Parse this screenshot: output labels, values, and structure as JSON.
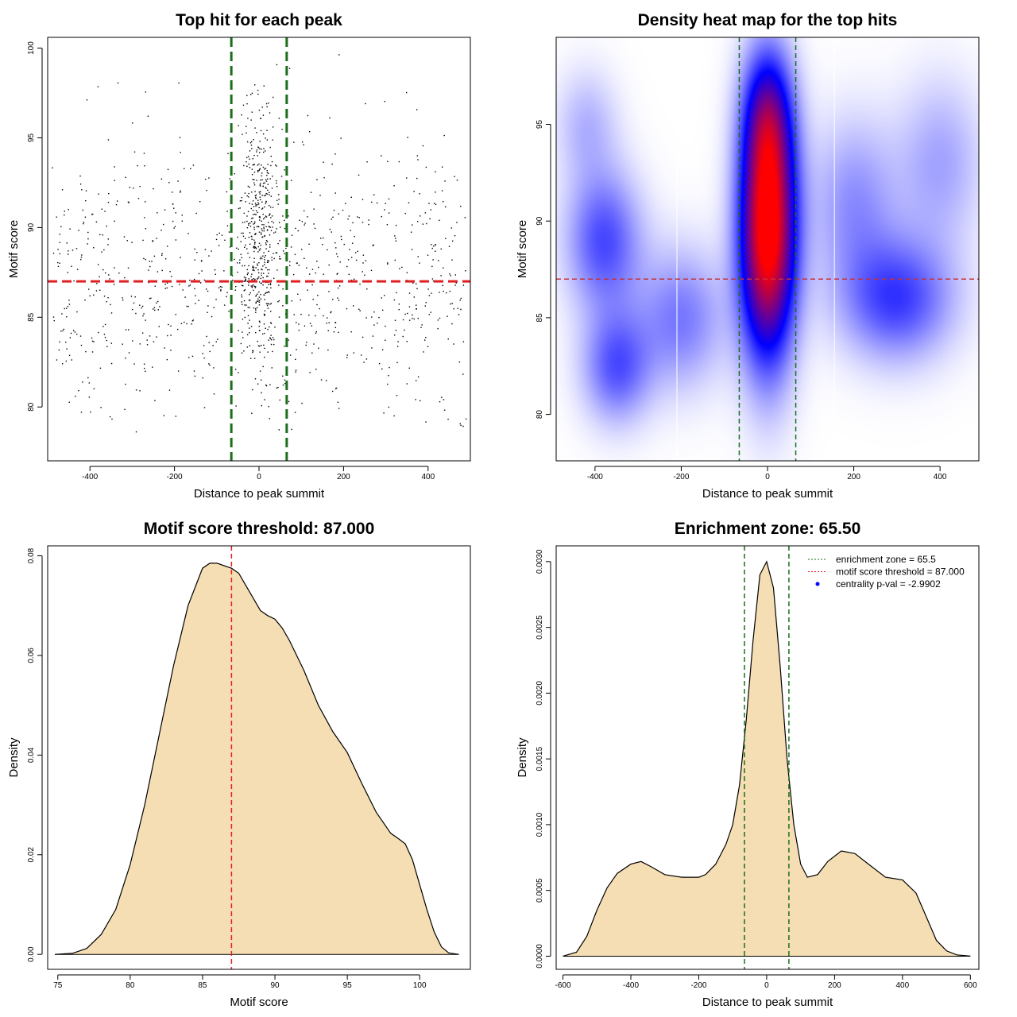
{
  "colors": {
    "points": "#000000",
    "threshold_line": "#e02020",
    "zone_line": "#1b6e1b",
    "density_fill": "#f5deb3",
    "heat_low": "#ffffff",
    "heat_mid": "#0000ff",
    "heat_high": "#ff0000"
  },
  "chart_data": [
    {
      "id": "scatter",
      "type": "scatter",
      "title": "Top hit for each peak",
      "xlabel": "Distance to peak summit",
      "ylabel": "Motif score",
      "xlim": [
        -500,
        500
      ],
      "ylim": [
        77,
        100.6
      ],
      "xticks": [
        -400,
        -200,
        0,
        200,
        400
      ],
      "yticks": [
        80,
        85,
        90,
        95,
        100
      ],
      "xtick_labels": [
        "-400",
        "-200",
        "0",
        "200",
        "400"
      ],
      "ytick_labels": [
        "80",
        "85",
        "90",
        "95",
        "100"
      ],
      "hline": 87,
      "vlines": [
        -65.5,
        65.5
      ],
      "point_count": 1350,
      "point_distribution": {
        "central_fraction": 0.35,
        "central_center": 0,
        "central_sd": 25,
        "central_score_mean": 89.5,
        "central_score_sd": 4,
        "background_score_mean": 87,
        "background_score_sd": 4.2
      }
    },
    {
      "id": "heatmap",
      "type": "heatmap",
      "title": "Density heat map for the top hits",
      "xlabel": "Distance to peak summit",
      "ylabel": "Motif score",
      "xlim": [
        -490,
        490
      ],
      "ylim": [
        77.6,
        99.5
      ],
      "xticks": [
        -400,
        -200,
        0,
        200,
        400
      ],
      "yticks": [
        80,
        85,
        90,
        95
      ],
      "xtick_labels": [
        "-400",
        "-200",
        "0",
        "200",
        "400"
      ],
      "ytick_labels": [
        "80",
        "85",
        "90",
        "95"
      ],
      "hline": 87,
      "vlines": [
        -65.5,
        65.5
      ],
      "white_vlines": [
        -210,
        155
      ],
      "colorscale": [
        "white",
        "blue",
        "red"
      ],
      "density_components": [
        {
          "x": 0,
          "y": 89.5,
          "sx": 45,
          "sy": 4.5,
          "w": 1.0
        },
        {
          "x": 0,
          "y": 95.5,
          "sx": 40,
          "sy": 2.5,
          "w": 0.35
        },
        {
          "x": -380,
          "y": 89,
          "sx": 60,
          "sy": 2.5,
          "w": 0.3
        },
        {
          "x": -350,
          "y": 82.5,
          "sx": 55,
          "sy": 2.0,
          "w": 0.28
        },
        {
          "x": -200,
          "y": 85,
          "sx": 70,
          "sy": 2.5,
          "w": 0.22
        },
        {
          "x": 300,
          "y": 86,
          "sx": 90,
          "sy": 2.2,
          "w": 0.32
        },
        {
          "x": 200,
          "y": 91,
          "sx": 70,
          "sy": 3.0,
          "w": 0.18
        },
        {
          "x": 400,
          "y": 93,
          "sx": 70,
          "sy": 3.0,
          "w": 0.15
        },
        {
          "x": -420,
          "y": 95,
          "sx": 50,
          "sy": 2.0,
          "w": 0.12
        }
      ]
    },
    {
      "id": "score_density",
      "type": "area",
      "title": "Motif score threshold: 87.000",
      "xlabel": "Motif score",
      "ylabel": "Density",
      "xlim": [
        74.3,
        103.5
      ],
      "ylim": [
        -0.003,
        0.082
      ],
      "xticks": [
        75,
        80,
        85,
        90,
        95,
        100
      ],
      "yticks": [
        0.0,
        0.02,
        0.04,
        0.06,
        0.08
      ],
      "xtick_labels": [
        "75",
        "80",
        "85",
        "90",
        "95",
        "100"
      ],
      "ytick_labels": [
        "0.00",
        "0.02",
        "0.04",
        "0.06",
        "0.08"
      ],
      "vline": 87,
      "x": [
        74.8,
        76,
        77,
        78,
        79,
        80,
        81,
        82,
        83,
        84,
        85,
        85.5,
        86,
        86.5,
        87,
        87.5,
        88,
        88.5,
        89,
        89.5,
        90,
        90.5,
        91,
        91.5,
        92,
        93,
        94,
        95,
        96,
        97,
        98,
        98.5,
        99,
        99.5,
        100,
        100.5,
        101,
        101.5,
        102,
        102.7
      ],
      "y": [
        0.0,
        0.0002,
        0.0012,
        0.004,
        0.009,
        0.018,
        0.03,
        0.044,
        0.058,
        0.07,
        0.0775,
        0.0785,
        0.0785,
        0.078,
        0.0775,
        0.0765,
        0.074,
        0.0715,
        0.069,
        0.068,
        0.0673,
        0.0655,
        0.063,
        0.06,
        0.057,
        0.05,
        0.0447,
        0.0405,
        0.0343,
        0.0285,
        0.0243,
        0.0233,
        0.0222,
        0.019,
        0.014,
        0.009,
        0.0045,
        0.0015,
        0.0003,
        0.0
      ]
    },
    {
      "id": "distance_density",
      "type": "area",
      "title": "Enrichment zone: 65.50",
      "xlabel": "Distance to peak summit",
      "ylabel": "Density",
      "xlim": [
        -620,
        625
      ],
      "ylim": [
        -0.0001,
        0.00312
      ],
      "xticks": [
        -600,
        -400,
        -200,
        0,
        200,
        400,
        600
      ],
      "yticks": [
        0.0,
        0.0005,
        0.001,
        0.0015,
        0.002,
        0.0025,
        0.003
      ],
      "xtick_labels": [
        "-600",
        "-400",
        "-200",
        "0",
        "200",
        "400",
        "600"
      ],
      "ytick_labels": [
        "0.0000",
        "0.0005",
        "0.0010",
        "0.0015",
        "0.0020",
        "0.0025",
        "0.0030"
      ],
      "vlines": [
        -65.5,
        65.5
      ],
      "x": [
        -600,
        -560,
        -530,
        -500,
        -470,
        -440,
        -400,
        -370,
        -340,
        -300,
        -250,
        -200,
        -180,
        -150,
        -120,
        -100,
        -80,
        -60,
        -40,
        -20,
        0,
        20,
        40,
        60,
        80,
        100,
        120,
        150,
        180,
        220,
        260,
        300,
        350,
        400,
        440,
        470,
        500,
        530,
        560,
        600
      ],
      "y": [
        0.0,
        3e-05,
        0.00015,
        0.00035,
        0.00052,
        0.00063,
        0.0007,
        0.00072,
        0.00068,
        0.00062,
        0.0006,
        0.0006,
        0.00062,
        0.0007,
        0.00085,
        0.001,
        0.0013,
        0.0018,
        0.0024,
        0.0029,
        0.003,
        0.0028,
        0.0022,
        0.0015,
        0.001,
        0.0007,
        0.0006,
        0.00062,
        0.00072,
        0.0008,
        0.00078,
        0.0007,
        0.0006,
        0.00058,
        0.00048,
        0.0003,
        0.00012,
        4e-05,
        1e-05,
        0.0
      ],
      "legend": {
        "placement": "top-right",
        "entries": [
          {
            "label": "enrichment zone = 65.5",
            "style": "dotted-line",
            "color": "#1b6e1b"
          },
          {
            "label": "motif score threshold = 87.000",
            "style": "dotted-line",
            "color": "#e02020"
          },
          {
            "label": "centrality p-val = -2.9902",
            "style": "dot",
            "color": "#0000ff"
          }
        ]
      }
    }
  ]
}
